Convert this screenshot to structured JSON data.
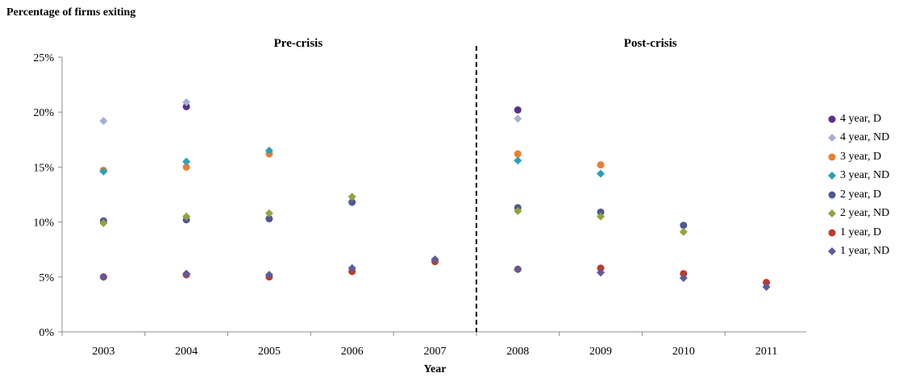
{
  "chart_data": {
    "type": "scatter",
    "ylabel": "Percentage of firms exiting",
    "xlabel": "Year",
    "categories": [
      "2003",
      "2004",
      "2005",
      "2006",
      "2007",
      "2008",
      "2009",
      "2010",
      "2011"
    ],
    "ylim": [
      0,
      25
    ],
    "yticks": [
      "0%",
      "5%",
      "10%",
      "15%",
      "20%",
      "25%"
    ],
    "divider_after": "2007",
    "section_labels": [
      "Pre-crisis",
      "Post-crisis"
    ],
    "legend_position": "right",
    "series": [
      {
        "name": "4 year, D",
        "color": "#5b2d90",
        "marker": "circle",
        "values": [
          null,
          20.5,
          null,
          null,
          null,
          20.2,
          null,
          null,
          null
        ]
      },
      {
        "name": "4 year, ND",
        "color": "#a6b0d6",
        "marker": "diamond",
        "values": [
          19.2,
          20.9,
          null,
          null,
          null,
          19.4,
          null,
          null,
          null
        ]
      },
      {
        "name": "3 year, D",
        "color": "#ed7d31",
        "marker": "circle",
        "values": [
          14.7,
          15.0,
          16.2,
          null,
          null,
          16.2,
          15.2,
          null,
          null
        ]
      },
      {
        "name": "3 year, ND",
        "color": "#2aa0b8",
        "marker": "diamond",
        "values": [
          14.6,
          15.5,
          16.5,
          null,
          null,
          15.6,
          14.4,
          null,
          null
        ]
      },
      {
        "name": "2 year, D",
        "color": "#4e5a8f",
        "marker": "circle",
        "values": [
          10.1,
          10.2,
          10.3,
          11.8,
          null,
          11.3,
          10.9,
          9.7,
          null
        ]
      },
      {
        "name": "2 year, ND",
        "color": "#8fa63c",
        "marker": "diamond",
        "values": [
          9.9,
          10.5,
          10.8,
          12.3,
          null,
          11.0,
          10.5,
          9.1,
          null
        ]
      },
      {
        "name": "1 year, D",
        "color": "#c0392b",
        "marker": "circle",
        "values": [
          5.0,
          5.2,
          5.0,
          5.5,
          6.4,
          5.7,
          5.8,
          5.3,
          4.5
        ]
      },
      {
        "name": "1 year, ND",
        "color": "#5c5c9c",
        "marker": "diamond",
        "values": [
          5.0,
          5.3,
          5.2,
          5.8,
          6.6,
          5.7,
          5.4,
          4.9,
          4.1
        ]
      }
    ]
  }
}
